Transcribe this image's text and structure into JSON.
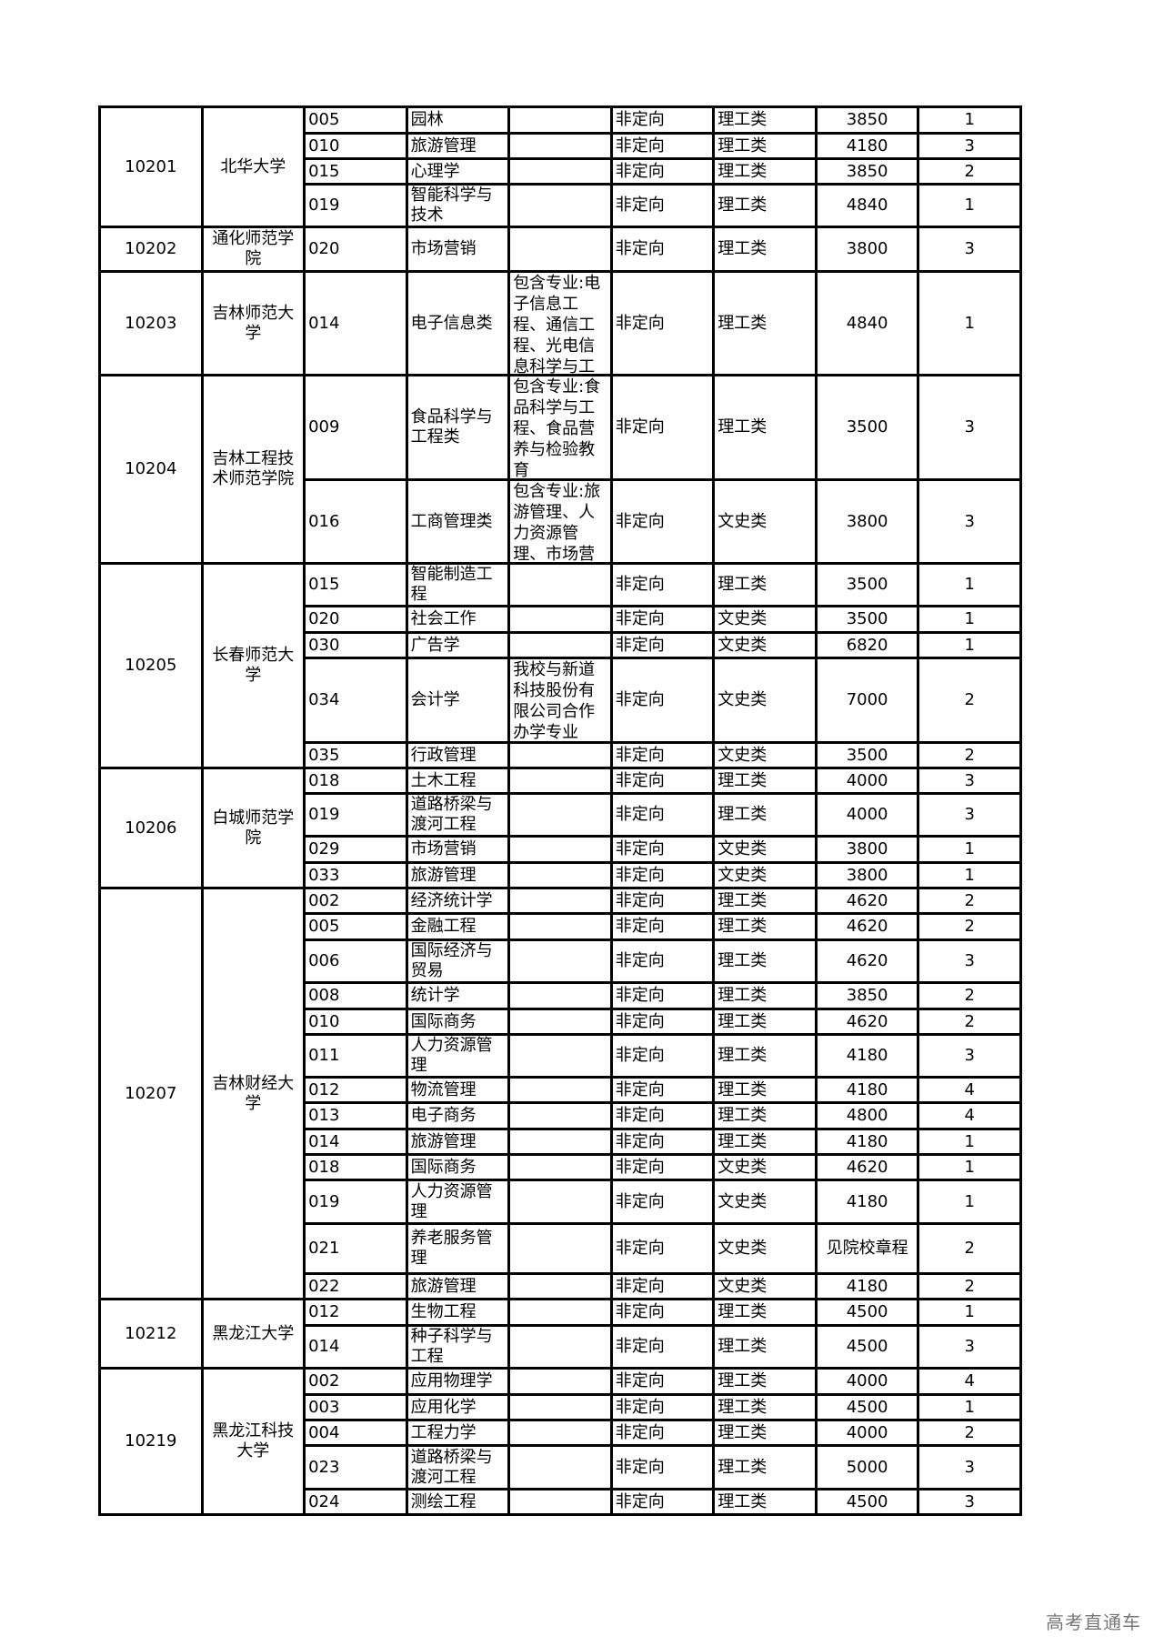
{
  "groups": [
    {
      "code": "10201",
      "name": "北华大学",
      "rows": [
        {
          "no": "005",
          "major": "园林",
          "note": "",
          "direction": "非定向",
          "category": "理工类",
          "fee": "3850",
          "count": "1"
        },
        {
          "no": "010",
          "major": "旅游管理",
          "note": "",
          "direction": "非定向",
          "category": "理工类",
          "fee": "4180",
          "count": "3"
        },
        {
          "no": "015",
          "major": "心理学",
          "note": "",
          "direction": "非定向",
          "category": "理工类",
          "fee": "3850",
          "count": "2"
        },
        {
          "no": "019",
          "major": "智能科学与技术",
          "note": "",
          "direction": "非定向",
          "category": "理工类",
          "fee": "4840",
          "count": "1"
        }
      ]
    },
    {
      "code": "10202",
      "name": "通化师范学院",
      "rows": [
        {
          "no": "020",
          "major": "市场营销",
          "note": "",
          "direction": "非定向",
          "category": "理工类",
          "fee": "3800",
          "count": "3"
        }
      ]
    },
    {
      "code": "10203",
      "name": "吉林师范大学",
      "rows": [
        {
          "no": "014",
          "major": "电子信息类",
          "note": "包含专业:电子信息工程、通信工程、光电信息科学与工程",
          "direction": "非定向",
          "category": "理工类",
          "fee": "4840",
          "count": "1"
        }
      ]
    },
    {
      "code": "10204",
      "name": "吉林工程技术师范学院",
      "rows": [
        {
          "no": "009",
          "major": "食品科学与工程类",
          "note": "包含专业:食品科学与工程、食品营养与检验教育",
          "direction": "非定向",
          "category": "理工类",
          "fee": "3500",
          "count": "3"
        },
        {
          "no": "016",
          "major": "工商管理类",
          "note": "包含专业:旅游管理、人力资源管理、市场营销",
          "direction": "非定向",
          "category": "文史类",
          "fee": "3800",
          "count": "3"
        }
      ]
    },
    {
      "code": "10205",
      "name": "长春师范大学",
      "rows": [
        {
          "no": "015",
          "major": "智能制造工程",
          "note": "",
          "direction": "非定向",
          "category": "理工类",
          "fee": "3500",
          "count": "1"
        },
        {
          "no": "020",
          "major": "社会工作",
          "note": "",
          "direction": "非定向",
          "category": "文史类",
          "fee": "3500",
          "count": "1"
        },
        {
          "no": "030",
          "major": "广告学",
          "note": "",
          "direction": "非定向",
          "category": "文史类",
          "fee": "6820",
          "count": "1"
        },
        {
          "no": "034",
          "major": "会计学",
          "note": "我校与新道科技股份有限公司合作办学专业",
          "direction": "非定向",
          "category": "文史类",
          "fee": "7000",
          "count": "2"
        },
        {
          "no": "035",
          "major": "行政管理",
          "note": "",
          "direction": "非定向",
          "category": "文史类",
          "fee": "3500",
          "count": "2"
        }
      ]
    },
    {
      "code": "10206",
      "name": "白城师范学院",
      "rows": [
        {
          "no": "018",
          "major": "土木工程",
          "note": "",
          "direction": "非定向",
          "category": "理工类",
          "fee": "4000",
          "count": "3"
        },
        {
          "no": "019",
          "major": "道路桥梁与渡河工程",
          "note": "",
          "direction": "非定向",
          "category": "理工类",
          "fee": "4000",
          "count": "3"
        },
        {
          "no": "029",
          "major": "市场营销",
          "note": "",
          "direction": "非定向",
          "category": "文史类",
          "fee": "3800",
          "count": "1"
        },
        {
          "no": "033",
          "major": "旅游管理",
          "note": "",
          "direction": "非定向",
          "category": "文史类",
          "fee": "3800",
          "count": "1"
        }
      ]
    },
    {
      "code": "10207",
      "name": "吉林财经大学",
      "rows": [
        {
          "no": "002",
          "major": "经济统计学",
          "note": "",
          "direction": "非定向",
          "category": "理工类",
          "fee": "4620",
          "count": "2"
        },
        {
          "no": "005",
          "major": "金融工程",
          "note": "",
          "direction": "非定向",
          "category": "理工类",
          "fee": "4620",
          "count": "2"
        },
        {
          "no": "006",
          "major": "国际经济与贸易",
          "note": "",
          "direction": "非定向",
          "category": "理工类",
          "fee": "4620",
          "count": "3"
        },
        {
          "no": "008",
          "major": "统计学",
          "note": "",
          "direction": "非定向",
          "category": "理工类",
          "fee": "3850",
          "count": "2"
        },
        {
          "no": "010",
          "major": "国际商务",
          "note": "",
          "direction": "非定向",
          "category": "理工类",
          "fee": "4620",
          "count": "2"
        },
        {
          "no": "011",
          "major": "人力资源管理",
          "note": "",
          "direction": "非定向",
          "category": "理工类",
          "fee": "4180",
          "count": "3"
        },
        {
          "no": "012",
          "major": "物流管理",
          "note": "",
          "direction": "非定向",
          "category": "理工类",
          "fee": "4180",
          "count": "4"
        },
        {
          "no": "013",
          "major": "电子商务",
          "note": "",
          "direction": "非定向",
          "category": "理工类",
          "fee": "4800",
          "count": "4"
        },
        {
          "no": "014",
          "major": "旅游管理",
          "note": "",
          "direction": "非定向",
          "category": "理工类",
          "fee": "4180",
          "count": "1"
        },
        {
          "no": "018",
          "major": "国际商务",
          "note": "",
          "direction": "非定向",
          "category": "文史类",
          "fee": "4620",
          "count": "1"
        },
        {
          "no": "019",
          "major": "人力资源管理",
          "note": "",
          "direction": "非定向",
          "category": "文史类",
          "fee": "4180",
          "count": "1"
        },
        {
          "no": "021",
          "major": "养老服务管理",
          "note": "",
          "direction": "非定向",
          "category": "文史类",
          "fee": "见院校章程",
          "count": "2"
        },
        {
          "no": "022",
          "major": "旅游管理",
          "note": "",
          "direction": "非定向",
          "category": "文史类",
          "fee": "4180",
          "count": "2"
        }
      ]
    },
    {
      "code": "10212",
      "name": "黑龙江大学",
      "rows": [
        {
          "no": "012",
          "major": "生物工程",
          "note": "",
          "direction": "非定向",
          "category": "理工类",
          "fee": "4500",
          "count": "1"
        },
        {
          "no": "014",
          "major": "种子科学与工程",
          "note": "",
          "direction": "非定向",
          "category": "理工类",
          "fee": "4500",
          "count": "3"
        }
      ]
    },
    {
      "code": "10219",
      "name": "黑龙江科技大学",
      "rows": [
        {
          "no": "002",
          "major": "应用物理学",
          "note": "",
          "direction": "非定向",
          "category": "理工类",
          "fee": "4000",
          "count": "4"
        },
        {
          "no": "003",
          "major": "应用化学",
          "note": "",
          "direction": "非定向",
          "category": "理工类",
          "fee": "4500",
          "count": "1"
        },
        {
          "no": "004",
          "major": "工程力学",
          "note": "",
          "direction": "非定向",
          "category": "理工类",
          "fee": "4000",
          "count": "2"
        },
        {
          "no": "023",
          "major": "道路桥梁与渡河工程",
          "note": "",
          "direction": "非定向",
          "category": "理工类",
          "fee": "5000",
          "count": "3"
        },
        {
          "no": "024",
          "major": "测绘工程",
          "note": "",
          "direction": "非定向",
          "category": "理工类",
          "fee": "4500",
          "count": "3"
        }
      ]
    }
  ],
  "watermark": "高考直通车"
}
